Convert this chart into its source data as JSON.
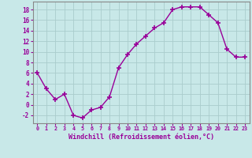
{
  "x": [
    0,
    1,
    2,
    3,
    4,
    5,
    6,
    7,
    8,
    9,
    10,
    11,
    12,
    13,
    14,
    15,
    16,
    17,
    18,
    19,
    20,
    21,
    22,
    23
  ],
  "y": [
    6,
    3,
    1,
    2,
    -2,
    -2.5,
    -1,
    -0.5,
    1.5,
    7,
    9.5,
    11.5,
    13,
    14.5,
    15.5,
    18,
    18.5,
    18.5,
    18.5,
    17,
    15.5,
    10.5,
    9,
    9
  ],
  "line_color": "#990099",
  "marker": "+",
  "bg_color": "#c8e8e8",
  "grid_color": "#aacccc",
  "xlabel": "Windchill (Refroidissement éolien,°C)",
  "xlabel_color": "#990099",
  "ylim": [
    -3.5,
    19.5
  ],
  "xlim": [
    -0.5,
    23.5
  ],
  "yticks": [
    -2,
    0,
    2,
    4,
    6,
    8,
    10,
    12,
    14,
    16,
    18
  ],
  "xtick_labels": [
    "0",
    "1",
    "2",
    "3",
    "4",
    "5",
    "6",
    "7",
    "8",
    "9",
    "10",
    "11",
    "12",
    "13",
    "14",
    "15",
    "16",
    "17",
    "18",
    "19",
    "20",
    "21",
    "22",
    "23"
  ],
  "tick_color": "#990099",
  "spine_color": "#777777"
}
